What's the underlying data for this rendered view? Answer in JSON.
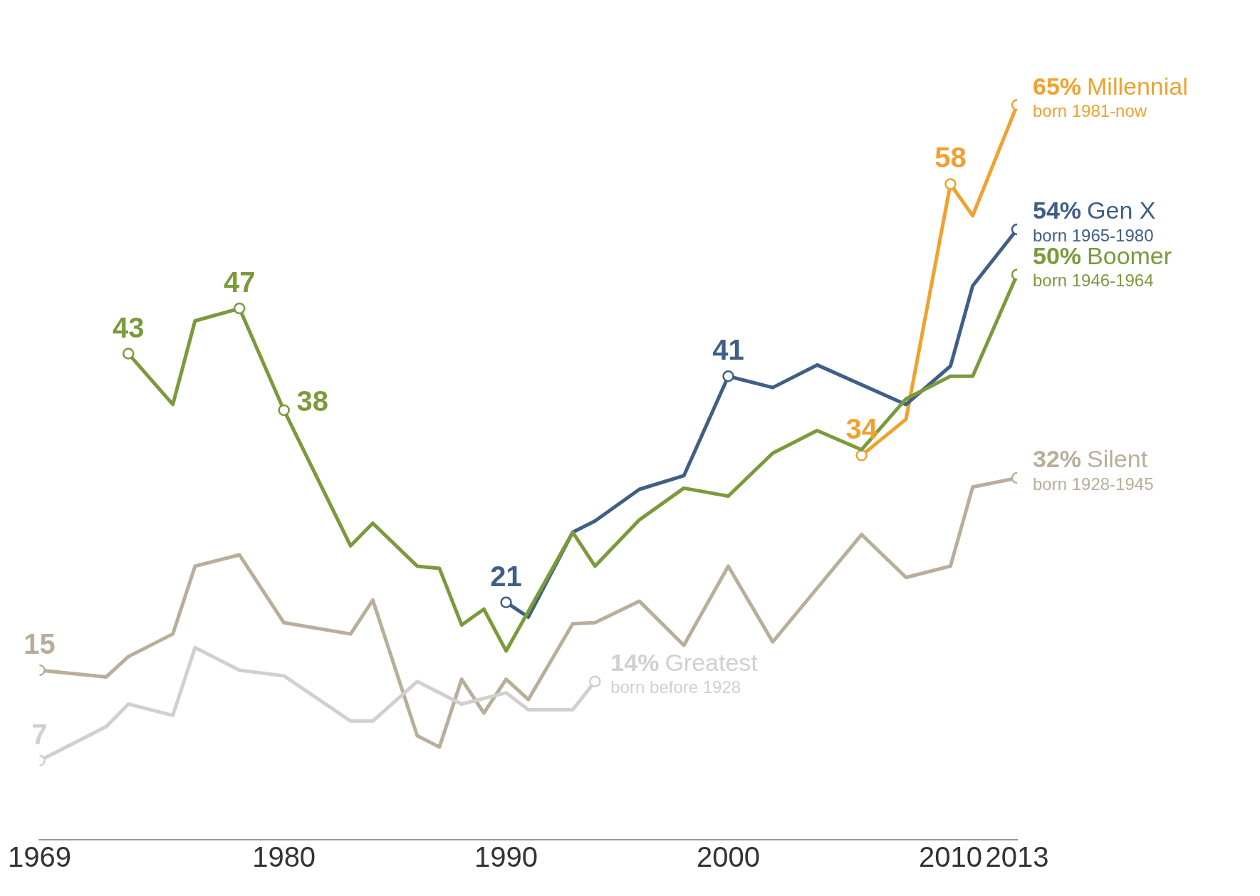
{
  "chart_data": {
    "type": "line",
    "xlim": [
      1969,
      2013
    ],
    "xticks": [
      1969,
      1980,
      1990,
      2000,
      2010,
      2013
    ],
    "tick_labels": "x",
    "grid": false,
    "legend": false,
    "line_style": "solid",
    "series": [
      {
        "name": "Greatest",
        "color": "#d0d0d0",
        "x": [
          1969,
          1972,
          1973,
          1975,
          1976,
          1978,
          1980,
          1983,
          1984,
          1986,
          1988,
          1990,
          1991,
          1993,
          1994
        ],
        "values": [
          7,
          10,
          12,
          11,
          17,
          15,
          14.5,
          10.5,
          10.5,
          14,
          12,
          13,
          11.5,
          11.5,
          14
        ],
        "value_labels": [
          "7",
          null,
          null,
          null,
          null,
          null,
          null,
          null,
          null,
          null,
          null,
          null,
          null,
          null,
          "14%"
        ]
      },
      {
        "name": "Silent",
        "color": "#b8ae9a",
        "x": [
          1969,
          1972,
          1973,
          1975,
          1976,
          1978,
          1980,
          1983,
          1984,
          1986,
          1987,
          1988,
          1989,
          1990,
          1991,
          1993,
          1994,
          1996,
          1998,
          2000,
          2002,
          2006,
          2008,
          2010,
          2011,
          2013
        ],
        "values": [
          15,
          14.4,
          16.2,
          18.2,
          24.2,
          25.2,
          19.2,
          18.2,
          21.2,
          9.2,
          8.2,
          14.2,
          11.2,
          14.2,
          12.4,
          19.1,
          19.2,
          21.1,
          17.2,
          24.2,
          17.5,
          27,
          23.2,
          24.2,
          31.2,
          32
        ],
        "value_labels": [
          "15",
          null,
          null,
          null,
          null,
          null,
          null,
          null,
          null,
          null,
          null,
          null,
          null,
          null,
          null,
          null,
          null,
          null,
          null,
          null,
          null,
          null,
          null,
          null,
          null,
          "32%"
        ]
      },
      {
        "name": "Boomer",
        "color": "#7b9a3c",
        "x": [
          1973,
          1975,
          1976,
          1978,
          1980,
          1983,
          1984,
          1986,
          1987,
          1988,
          1989,
          1990,
          1993,
          1994,
          1996,
          1998,
          2000,
          2002,
          2004,
          2006,
          2008,
          2010,
          2011,
          2013
        ],
        "values": [
          43,
          38.5,
          45.9,
          47,
          38,
          26,
          28,
          24.2,
          24,
          19,
          20.4,
          16.7,
          27.2,
          24.2,
          28.3,
          31.1,
          30.4,
          34.2,
          36.2,
          34.5,
          39,
          41,
          41,
          50
        ],
        "value_labels": [
          "43",
          null,
          null,
          "47",
          "38",
          null,
          null,
          null,
          null,
          null,
          null,
          null,
          null,
          null,
          null,
          null,
          null,
          null,
          null,
          null,
          null,
          null,
          null,
          "50%"
        ]
      },
      {
        "name": "Gen X",
        "color": "#3f5f86",
        "x": [
          1990,
          1991,
          1993,
          1994,
          1996,
          1998,
          2000,
          2002,
          2004,
          2008,
          2010,
          2011,
          2013
        ],
        "values": [
          21,
          19.7,
          27.2,
          28.2,
          31,
          32.2,
          41,
          40,
          42,
          38.5,
          41.9,
          49,
          54
        ],
        "value_labels": [
          "21",
          null,
          null,
          null,
          null,
          null,
          "41",
          null,
          null,
          null,
          null,
          null,
          "54%"
        ]
      },
      {
        "name": "Millennial",
        "color": "#f0a12e",
        "x": [
          2006,
          2008,
          2010,
          2011,
          2013
        ],
        "values": [
          34,
          37.2,
          58,
          55.2,
          65
        ],
        "value_labels": [
          "34",
          null,
          "58",
          null,
          "65%"
        ]
      }
    ],
    "annotations": [
      "born before 1928",
      "born 1928-1945",
      "born 1946-1964",
      "born 1965-1980",
      "born 1981-now"
    ]
  }
}
